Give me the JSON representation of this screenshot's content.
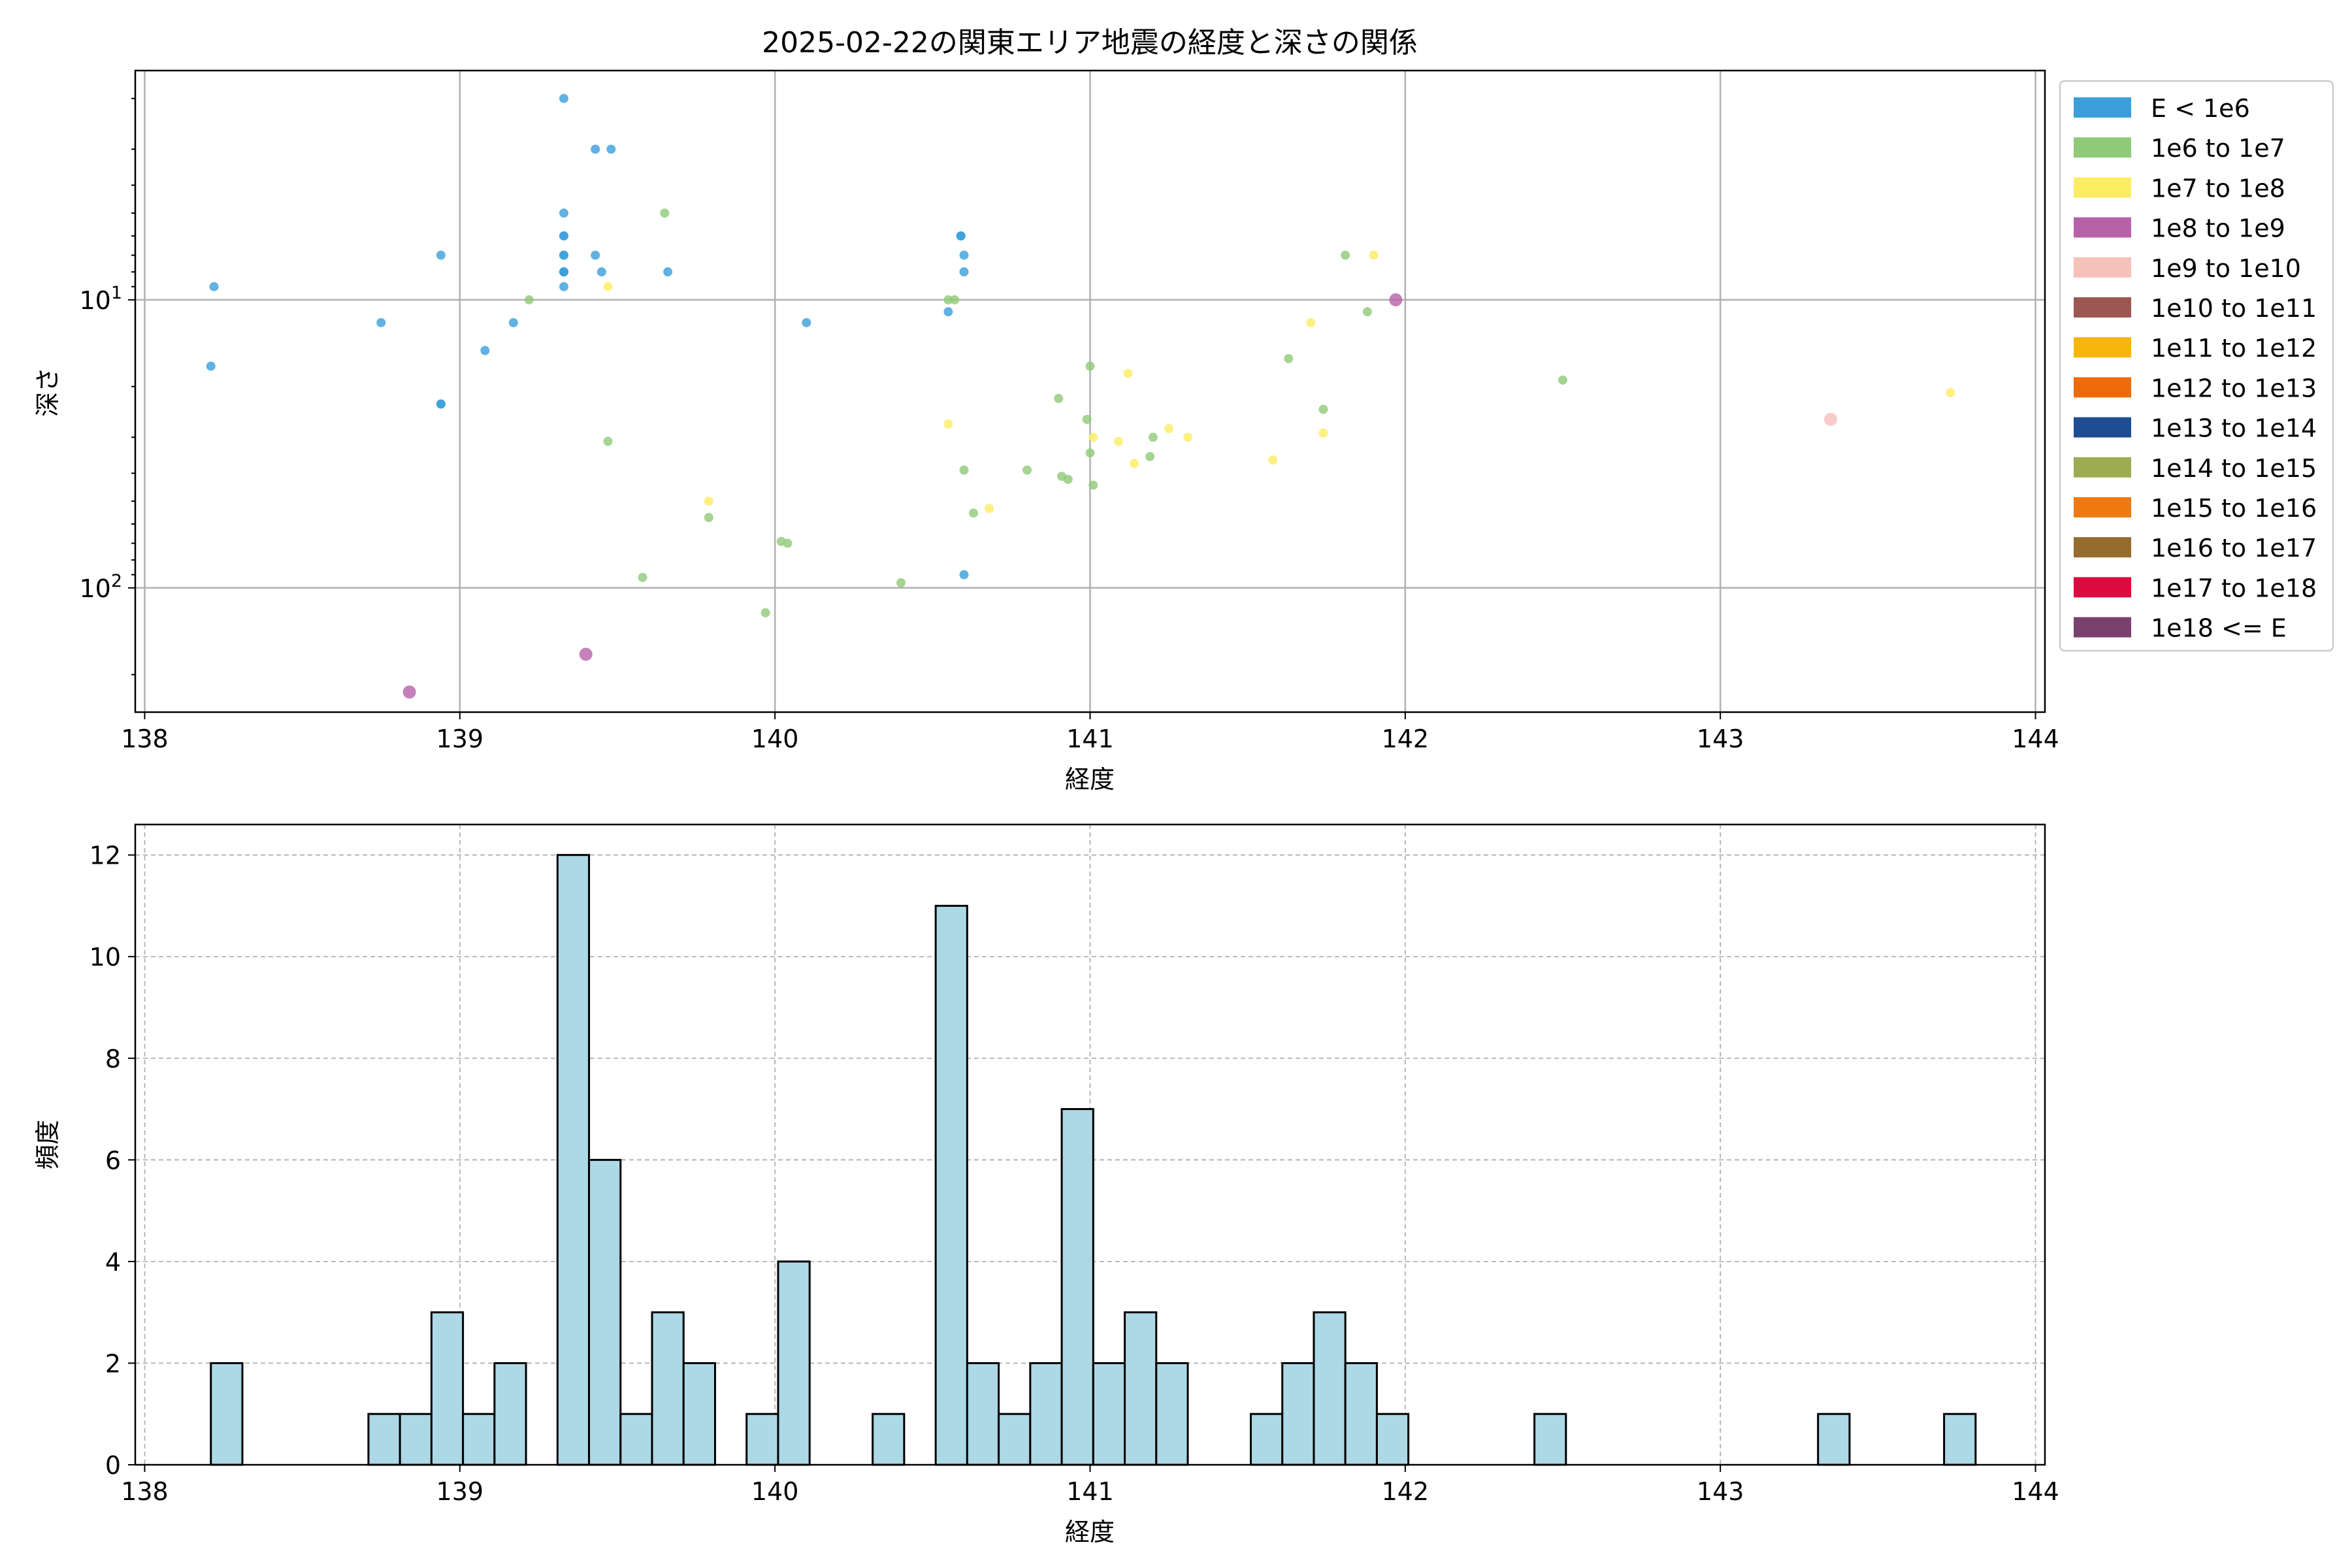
{
  "figure": {
    "title": "2025-02-22の関東エリア地震の経度と深さの関係"
  },
  "chart_data": [
    {
      "type": "scatter",
      "title": "2025-02-22の関東エリア地震の経度と深さの関係",
      "xlabel": "経度",
      "ylabel": "深さ",
      "xlim": [
        137.97,
        144.03
      ],
      "ylim": [
        270,
        1.6
      ],
      "yscale": "log",
      "yaxis_inverted": true,
      "x_ticks": [
        "138",
        "139",
        "140",
        "141",
        "142",
        "143",
        "144"
      ],
      "y_ticks": [
        {
          "value": 10,
          "base": "10",
          "exp": "1"
        },
        {
          "value": 100,
          "base": "10",
          "exp": "2"
        }
      ],
      "grid": true,
      "legend_position": "outside-right",
      "legend": [
        {
          "label": "E < 1e6",
          "color": "#3a9fdb"
        },
        {
          "label": "1e6 to 1e7",
          "color": "#90c978"
        },
        {
          "label": "1e7 to 1e8",
          "color": "#fcec62"
        },
        {
          "label": "1e8 to 1e9",
          "color": "#b762a8"
        },
        {
          "label": "1e9 to 1e10",
          "color": "#f6c1ba"
        },
        {
          "label": "1e10 to 1e11",
          "color": "#9c5752"
        },
        {
          "label": "1e11 to 1e12",
          "color": "#f7b40a"
        },
        {
          "label": "1e12 to 1e13",
          "color": "#ee6b0c"
        },
        {
          "label": "1e13 to 1e14",
          "color": "#1e4d94"
        },
        {
          "label": "1e14 to 1e15",
          "color": "#9dab52"
        },
        {
          "label": "1e15 to 1e16",
          "color": "#ef7a13"
        },
        {
          "label": "1e16 to 1e17",
          "color": "#956b2e"
        },
        {
          "label": "1e17 to 1e18",
          "color": "#dc0a40"
        },
        {
          "label": "1e18 <= E",
          "color": "#7b416e"
        }
      ],
      "series": [
        {
          "name": "E < 1e6",
          "points": [
            [
              138.22,
              9
            ],
            [
              138.21,
              17
            ],
            [
              138.75,
              12
            ],
            [
              138.94,
              7
            ],
            [
              138.94,
              23
            ],
            [
              138.94,
              23
            ],
            [
              139.08,
              15
            ],
            [
              139.17,
              12
            ],
            [
              139.33,
              2
            ],
            [
              139.33,
              5
            ],
            [
              139.33,
              6
            ],
            [
              139.33,
              6
            ],
            [
              139.33,
              7
            ],
            [
              139.33,
              7
            ],
            [
              139.33,
              8
            ],
            [
              139.33,
              8
            ],
            [
              139.33,
              8
            ],
            [
              139.33,
              9
            ],
            [
              139.43,
              3
            ],
            [
              139.48,
              3
            ],
            [
              139.43,
              7
            ],
            [
              139.45,
              8
            ],
            [
              139.66,
              8
            ],
            [
              140.1,
              12
            ],
            [
              140.55,
              11
            ],
            [
              140.59,
              6
            ],
            [
              140.59,
              6
            ],
            [
              140.6,
              7
            ],
            [
              140.6,
              8
            ],
            [
              140.6,
              90
            ]
          ]
        },
        {
          "name": "1e6 to 1e7",
          "points": [
            [
              139.22,
              10
            ],
            [
              139.47,
              31
            ],
            [
              139.58,
              92
            ],
            [
              139.65,
              5
            ],
            [
              139.79,
              57
            ],
            [
              139.97,
              122
            ],
            [
              140.02,
              69
            ],
            [
              140.04,
              70
            ],
            [
              140.4,
              96
            ],
            [
              140.55,
              10
            ],
            [
              140.57,
              10
            ],
            [
              140.6,
              39
            ],
            [
              140.63,
              55
            ],
            [
              140.8,
              39
            ],
            [
              140.9,
              22
            ],
            [
              140.91,
              41
            ],
            [
              140.93,
              42
            ],
            [
              140.99,
              26
            ],
            [
              141.0,
              17
            ],
            [
              141.0,
              34
            ],
            [
              141.01,
              44
            ],
            [
              141.2,
              30
            ],
            [
              141.19,
              35
            ],
            [
              141.63,
              16
            ],
            [
              141.74,
              24
            ],
            [
              141.81,
              7
            ],
            [
              141.88,
              11
            ],
            [
              142.5,
              19
            ]
          ]
        },
        {
          "name": "1e7 to 1e8",
          "points": [
            [
              139.47,
              9
            ],
            [
              139.79,
              50
            ],
            [
              140.55,
              27
            ],
            [
              140.68,
              53
            ],
            [
              141.01,
              30
            ],
            [
              141.09,
              31
            ],
            [
              141.12,
              18
            ],
            [
              141.14,
              37
            ],
            [
              141.25,
              28
            ],
            [
              141.31,
              30
            ],
            [
              141.58,
              36
            ],
            [
              141.7,
              12
            ],
            [
              141.74,
              29
            ],
            [
              141.9,
              7
            ],
            [
              143.73,
              21
            ]
          ]
        },
        {
          "name": "1e8 to 1e9",
          "points": [
            [
              138.84,
              230
            ],
            [
              139.4,
              170
            ],
            [
              141.97,
              10
            ]
          ]
        },
        {
          "name": "1e9 to 1e10",
          "points": [
            [
              143.35,
              26
            ]
          ]
        }
      ]
    },
    {
      "type": "bar",
      "title": "",
      "xlabel": "経度",
      "ylabel": "頻度",
      "xlim": [
        137.97,
        144.03
      ],
      "ylim": [
        0,
        12.6
      ],
      "x_ticks": [
        "138",
        "139",
        "140",
        "141",
        "142",
        "143",
        "144"
      ],
      "y_ticks": [
        "0",
        "2",
        "4",
        "6",
        "8",
        "10",
        "12"
      ],
      "grid": true,
      "bar_color": "#add8e6",
      "edge_color": "#000000",
      "bin_start": 138.21,
      "bin_width": 0.1,
      "counts": [
        2,
        0,
        0,
        0,
        0,
        1,
        1,
        3,
        1,
        2,
        0,
        12,
        6,
        1,
        3,
        2,
        0,
        1,
        4,
        0,
        0,
        1,
        0,
        11,
        2,
        1,
        2,
        7,
        2,
        3,
        2,
        0,
        0,
        1,
        2,
        3,
        2,
        1,
        0,
        0,
        0,
        0,
        1,
        0,
        0,
        0,
        0,
        0,
        0,
        0,
        0,
        1,
        0,
        0,
        0,
        1
      ]
    }
  ]
}
